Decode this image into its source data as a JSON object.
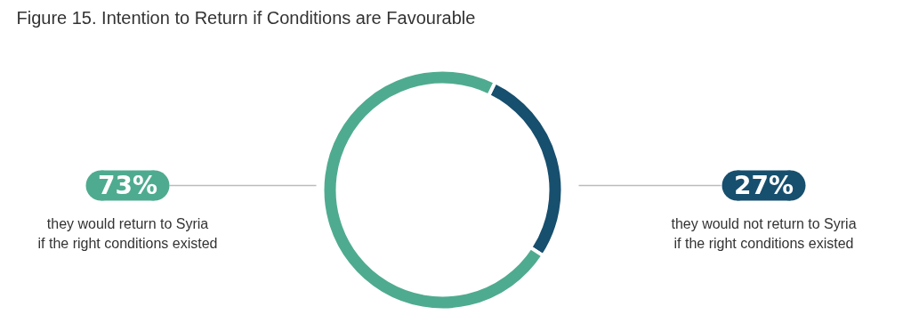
{
  "chart_data": {
    "type": "donut",
    "title": "Figure 15. Intention to Return if Conditions are Favourable",
    "categories": [
      "they would return to Syria\nif the right conditions existed",
      "they would not return to Syria\nif the right conditions existed"
    ],
    "values": [
      73,
      27
    ],
    "colors": [
      "#4fab8f",
      "#174f6e"
    ],
    "value_labels": [
      "73%",
      "27%"
    ],
    "legend": "left"
  }
}
